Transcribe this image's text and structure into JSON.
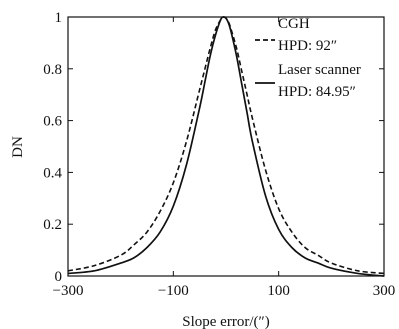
{
  "chart_data": {
    "type": "line",
    "xlabel": "Slope error/(″)",
    "ylabel": "DN",
    "xlim": [
      -300,
      300
    ],
    "ylim": [
      0,
      1
    ],
    "x_ticks": [
      -300,
      -100,
      100,
      300
    ],
    "y_ticks": [
      0,
      0.2,
      0.4,
      0.6,
      0.8,
      1
    ],
    "y_tick_labels": [
      "0",
      "0.2",
      "0.4",
      "0.6",
      "0.8",
      "1"
    ],
    "grid": false,
    "legend_position": "top-right",
    "series": [
      {
        "name": "CGH",
        "hpd_label": "HPD: 92″",
        "style": "dashed",
        "color": "#111111",
        "x": [
          -300,
          -250,
          -200,
          -175,
          -150,
          -125,
          -100,
          -75,
          -50,
          -40,
          -30,
          -20,
          -10,
          -5,
          0,
          5,
          10,
          20,
          30,
          40,
          50,
          75,
          100,
          125,
          150,
          175,
          200,
          250,
          300
        ],
        "y": [
          0.02,
          0.04,
          0.08,
          0.12,
          0.17,
          0.25,
          0.36,
          0.52,
          0.72,
          0.8,
          0.88,
          0.95,
          0.99,
          1.0,
          0.995,
          0.98,
          0.95,
          0.88,
          0.79,
          0.7,
          0.61,
          0.41,
          0.26,
          0.17,
          0.11,
          0.08,
          0.05,
          0.02,
          0.01
        ]
      },
      {
        "name": "Laser scanner",
        "hpd_label": "HPD: 84.95″",
        "style": "solid",
        "color": "#111111",
        "x": [
          -300,
          -250,
          -200,
          -175,
          -150,
          -125,
          -100,
          -75,
          -50,
          -40,
          -30,
          -20,
          -10,
          -5,
          0,
          5,
          10,
          20,
          30,
          40,
          50,
          75,
          100,
          125,
          150,
          175,
          200,
          250,
          300
        ],
        "y": [
          0.01,
          0.02,
          0.05,
          0.07,
          0.11,
          0.17,
          0.27,
          0.43,
          0.65,
          0.75,
          0.85,
          0.93,
          0.99,
          1.0,
          0.995,
          0.975,
          0.94,
          0.85,
          0.74,
          0.63,
          0.52,
          0.31,
          0.18,
          0.11,
          0.07,
          0.05,
          0.03,
          0.01,
          0.0
        ]
      }
    ]
  }
}
